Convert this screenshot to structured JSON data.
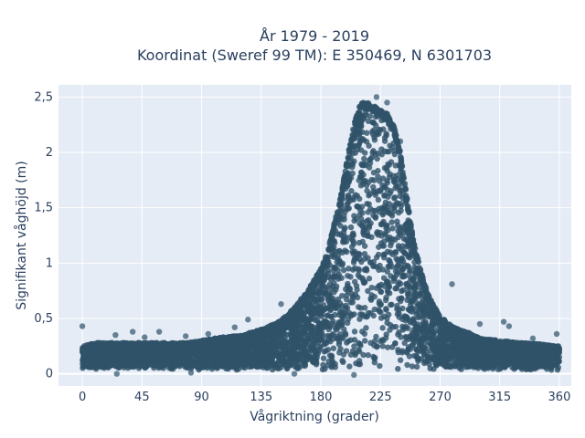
{
  "chart_data": {
    "type": "scatter",
    "title_lines": [
      "År 1979 - 2019",
      "Koordinat (Sweref 99 TM): E 350469, N 6301703"
    ],
    "xlabel": "Vågriktning (grader)",
    "ylabel": "Signifikant våghöjd (m)",
    "xlim": [
      -18,
      369
    ],
    "ylim": [
      -0.11,
      2.61
    ],
    "x_ticks": [
      0,
      45,
      90,
      135,
      180,
      225,
      270,
      315,
      360
    ],
    "y_ticks": [
      {
        "value": 0,
        "label": "0"
      },
      {
        "value": 0.5,
        "label": "0,5"
      },
      {
        "value": 1,
        "label": "1"
      },
      {
        "value": 1.5,
        "label": "1,5"
      },
      {
        "value": 2,
        "label": "2"
      },
      {
        "value": 2.5,
        "label": "2,5"
      }
    ],
    "grid": true,
    "legend": "none",
    "marker_color": "#2f5369",
    "background_color": "#e5ecf6",
    "envelope": {
      "x": [
        0,
        10,
        20,
        30,
        45,
        60,
        75,
        90,
        105,
        120,
        135,
        150,
        160,
        170,
        180,
        185,
        190,
        195,
        200,
        205,
        210,
        215,
        220,
        225,
        230,
        235,
        240,
        245,
        250,
        255,
        260,
        265,
        270,
        280,
        290,
        300,
        315,
        330,
        345,
        360
      ],
      "y_max": [
        0.25,
        0.28,
        0.28,
        0.28,
        0.28,
        0.28,
        0.28,
        0.3,
        0.33,
        0.35,
        0.4,
        0.48,
        0.6,
        0.75,
        0.95,
        1.1,
        1.35,
        1.6,
        1.95,
        2.25,
        2.45,
        2.45,
        2.42,
        2.38,
        2.35,
        2.25,
        2.0,
        1.6,
        1.2,
        0.95,
        0.75,
        0.62,
        0.52,
        0.42,
        0.38,
        0.32,
        0.3,
        0.28,
        0.27,
        0.25
      ],
      "y_min": 0.03
    },
    "outliers": [
      {
        "x": 0,
        "y": 0.43
      },
      {
        "x": 25,
        "y": 0.35
      },
      {
        "x": 38,
        "y": 0.38
      },
      {
        "x": 47,
        "y": 0.33
      },
      {
        "x": 58,
        "y": 0.38
      },
      {
        "x": 78,
        "y": 0.34
      },
      {
        "x": 95,
        "y": 0.36
      },
      {
        "x": 115,
        "y": 0.42
      },
      {
        "x": 125,
        "y": 0.49
      },
      {
        "x": 150,
        "y": 0.63
      },
      {
        "x": 210,
        "y": 2.3
      },
      {
        "x": 222,
        "y": 2.5
      },
      {
        "x": 230,
        "y": 2.45
      },
      {
        "x": 240,
        "y": 2.1
      },
      {
        "x": 279,
        "y": 0.81
      },
      {
        "x": 300,
        "y": 0.45
      },
      {
        "x": 318,
        "y": 0.47
      },
      {
        "x": 322,
        "y": 0.43
      },
      {
        "x": 340,
        "y": 0.32
      },
      {
        "x": 358,
        "y": 0.36
      }
    ],
    "bottom_outliers": [
      {
        "x": 26,
        "y": 0.0
      },
      {
        "x": 82,
        "y": 0.01
      },
      {
        "x": 160,
        "y": 0.0
      },
      {
        "x": 205,
        "y": -0.01
      }
    ]
  }
}
